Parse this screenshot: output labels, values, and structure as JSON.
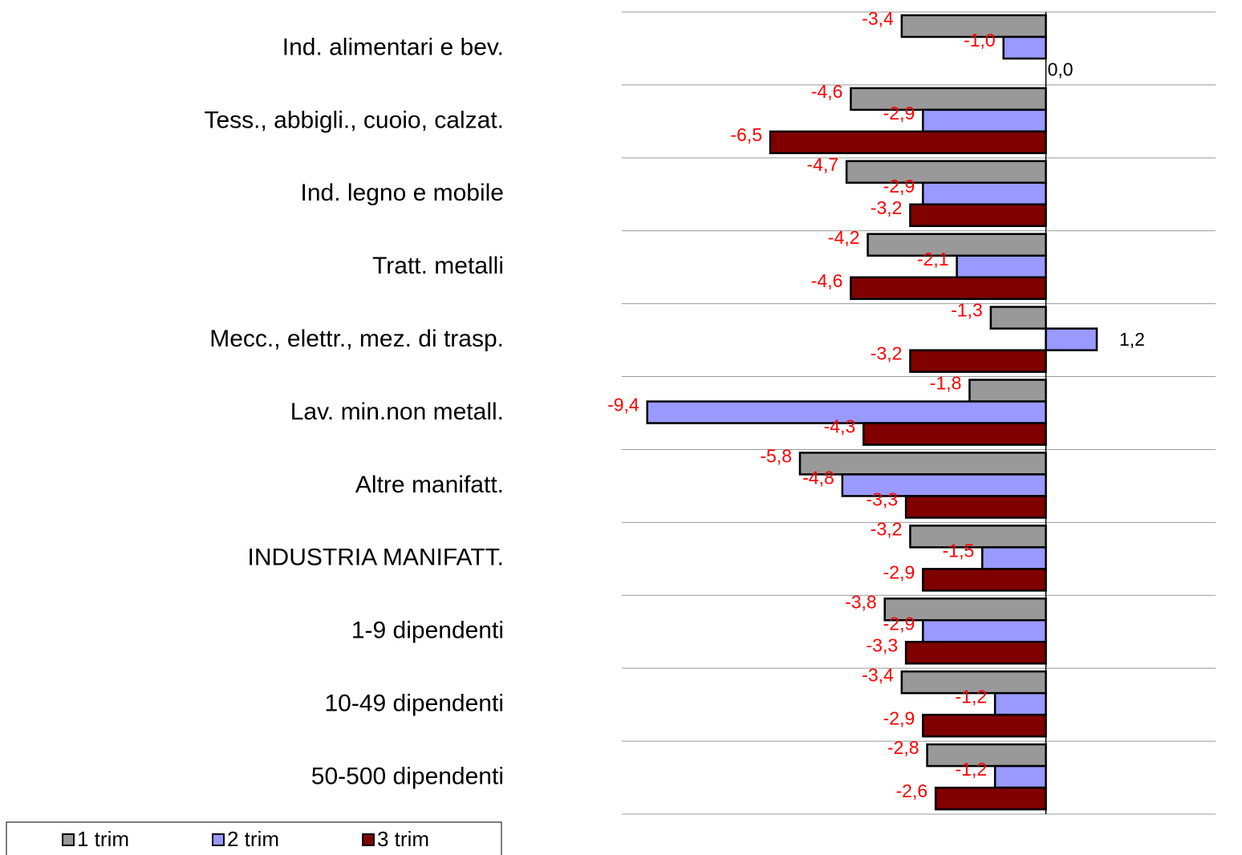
{
  "chart_data": {
    "type": "barh",
    "categories": [
      "Ind. alimentari e bev.",
      "Tess., abbigli., cuoio, calzat.",
      "Ind. legno e mobile",
      "Tratt. metalli",
      "Mecc., elettr., mez. di trasp.",
      "Lav. min.non metall.",
      "Altre manifatt.",
      "INDUSTRIA MANIFATT.",
      "1-9 dipendenti",
      "10-49 dipendenti",
      "50-500 dipendenti"
    ],
    "series": [
      {
        "name": "1 trim",
        "color": "#999999",
        "values": [
          -3.4,
          -4.6,
          -4.7,
          -4.2,
          -1.3,
          -1.8,
          -5.8,
          -3.2,
          -3.8,
          -3.4,
          -2.8
        ],
        "value_labels": [
          "-3,4",
          "-4,6",
          "-4,7",
          "-4,2",
          "-1,3",
          "-1,8",
          "-5,8",
          "-3,2",
          "-3,8",
          "-3,4",
          "-2,8"
        ]
      },
      {
        "name": "2 trim",
        "color": "#9999ff",
        "values": [
          -1.0,
          -2.9,
          -2.9,
          -2.1,
          1.2,
          -9.4,
          -4.8,
          -1.5,
          -2.9,
          -1.2,
          -1.2
        ],
        "value_labels": [
          "-1,0",
          "-2,9",
          "-2,9",
          "-2,1",
          "1,2",
          "-9,4",
          "-4,8",
          "-1,5",
          "-2,9",
          "-1,2",
          "-1,2"
        ]
      },
      {
        "name": "3 trim",
        "color": "#800000",
        "values": [
          0.0,
          -6.5,
          -3.2,
          -4.6,
          -3.2,
          -4.3,
          -3.3,
          -2.9,
          -3.3,
          -2.9,
          -2.6
        ],
        "value_labels": [
          "0,0",
          "-6,5",
          "-3,2",
          "-4,6",
          "-3,2",
          "-4,3",
          "-3,3",
          "-2,9",
          "-3,3",
          "-2,9",
          "-2,6"
        ]
      }
    ],
    "xlim": [
      -10,
      4
    ],
    "grid": true,
    "legend": "bottom-left",
    "label_color": "#000000",
    "negative_label_color": "#ff0000"
  }
}
